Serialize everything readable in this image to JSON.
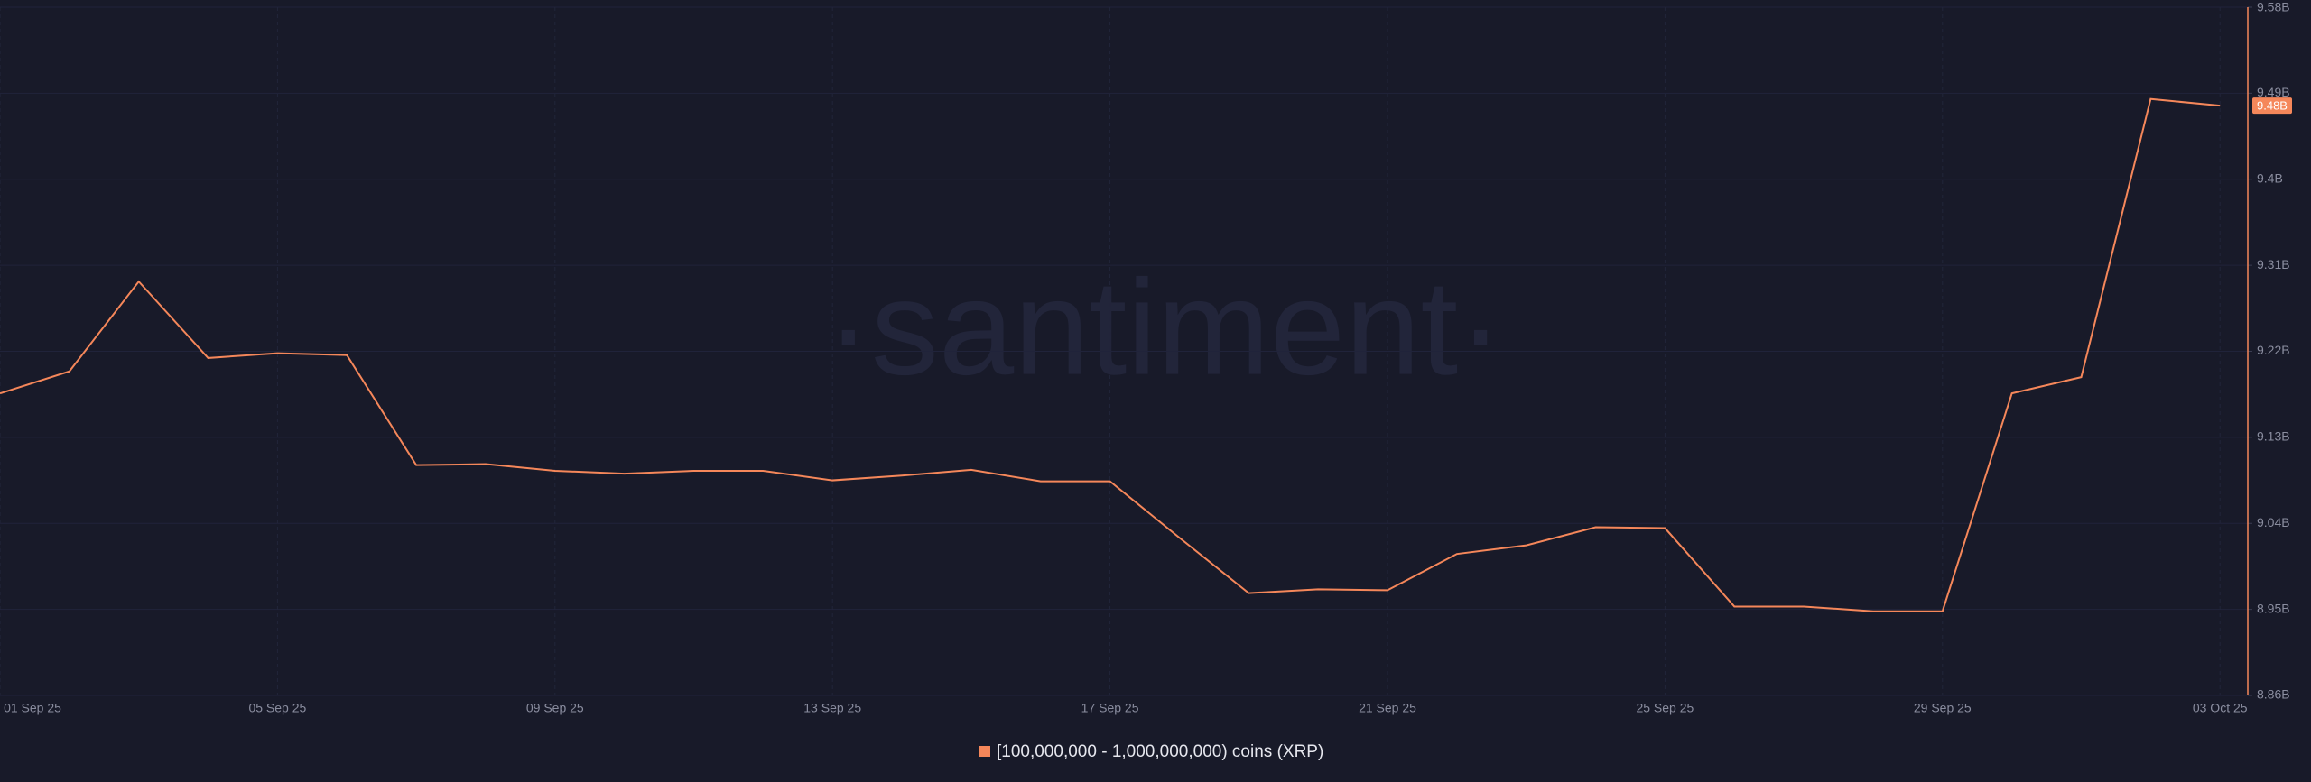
{
  "chart_data": {
    "type": "line",
    "watermark": "·santiment·",
    "x": [
      "01 Sep 25",
      null,
      null,
      null,
      "05 Sep 25",
      null,
      null,
      null,
      "09 Sep 25",
      null,
      null,
      null,
      "13 Sep 25",
      null,
      null,
      null,
      "17 Sep 25",
      null,
      null,
      null,
      "21 Sep 25",
      null,
      null,
      null,
      "25 Sep 25",
      null,
      null,
      null,
      "29 Sep 25",
      null,
      null,
      null,
      "03 Oct 25"
    ],
    "series": [
      {
        "name": "[100,000,000 - 1,000,000,000) coins (XRP)",
        "color": "#f5875a",
        "values": [
          9176000000,
          9199000000,
          9293000000,
          9213000000,
          9218000000,
          9216000000,
          9101000000,
          9102000000,
          9095000000,
          9092000000,
          9095000000,
          9095000000,
          9085000000,
          9090000000,
          9096000000,
          9084000000,
          9084000000,
          9025000000,
          8967000000,
          8971000000,
          8970000000,
          9008000000,
          9017000000,
          9036000000,
          9035000000,
          8953000000,
          8953000000,
          8948000000,
          8948000000,
          9176000000,
          9193000000,
          9484000000,
          9477000000
        ],
        "value_labels": [
          null,
          null,
          null,
          null,
          null,
          null,
          null,
          null,
          null,
          null,
          null,
          null,
          null,
          null,
          null,
          null,
          null,
          null,
          null,
          null,
          null,
          null,
          null,
          null,
          null,
          null,
          null,
          null,
          null,
          null,
          null,
          null,
          "9.48B"
        ]
      }
    ],
    "ylim": [
      8860000000,
      9580000000
    ],
    "yticks": [
      {
        "value": 8860000000,
        "label": "8.86B"
      },
      {
        "value": 8950000000,
        "label": "8.95B"
      },
      {
        "value": 9040000000,
        "label": "9.04B"
      },
      {
        "value": 9130000000,
        "label": "9.13B"
      },
      {
        "value": 9220000000,
        "label": "9.22B"
      },
      {
        "value": 9310000000,
        "label": "9.31B"
      },
      {
        "value": 9400000000,
        "label": "9.4B"
      },
      {
        "value": 9490000000,
        "label": "9.49B"
      },
      {
        "value": 9580000000,
        "label": "9.58B"
      }
    ],
    "grid": true
  }
}
